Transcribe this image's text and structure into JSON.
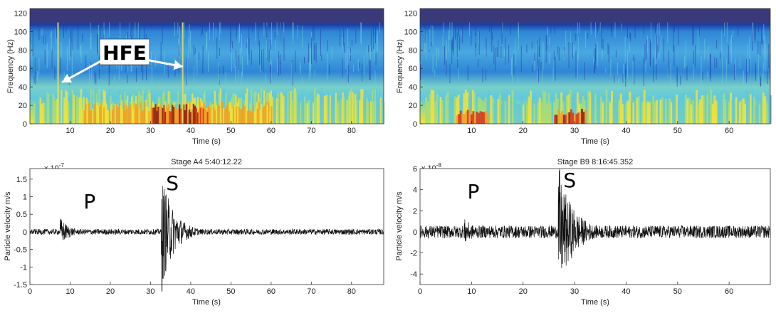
{
  "chart_data": [
    {
      "type": "heatmap",
      "panel": "spectrogram-a4",
      "xlabel": "Time (s)",
      "ylabel": "Frequency (Hz)",
      "xlim": [
        0,
        88
      ],
      "ylim": [
        0,
        125
      ],
      "xticks": [
        10,
        20,
        30,
        40,
        50,
        60,
        70,
        80
      ],
      "yticks": [
        0,
        20,
        40,
        60,
        80,
        100,
        120
      ],
      "colormap": [
        "#0a1a5e",
        "#1b3fa6",
        "#2f86d6",
        "#5fc8df",
        "#a6dc7a",
        "#f2e13a",
        "#f5a020",
        "#d9331c",
        "#8a1c14"
      ],
      "high_freq_events": [
        7,
        38
      ],
      "annotation": {
        "text": "HFE",
        "points_to": [
          [
            8,
            45
          ],
          [
            38,
            62
          ]
        ]
      }
    },
    {
      "type": "heatmap",
      "panel": "spectrogram-b9",
      "xlabel": "Time (s)",
      "ylabel": "Frequency (Hz)",
      "xlim": [
        0,
        68
      ],
      "ylim": [
        0,
        125
      ],
      "xticks": [
        10,
        20,
        30,
        40,
        50,
        60
      ],
      "yticks": [
        0,
        20,
        40,
        60,
        80,
        100,
        120
      ],
      "colormap": [
        "#0a1a5e",
        "#1b3fa6",
        "#2f86d6",
        "#5fc8df",
        "#a6dc7a",
        "#f2e13a",
        "#f5a020",
        "#d9331c",
        "#8a1c14"
      ]
    },
    {
      "type": "line",
      "panel": "waveform-a4",
      "title": "Stage A4 5:40:12.22",
      "xlabel": "Time (s)",
      "ylabel": "Particle velocity m/s",
      "multiplier": "x 10",
      "exponent": "-7",
      "xlim": [
        0,
        88
      ],
      "ylim": [
        -1.5,
        1.8
      ],
      "xticks": [
        0,
        10,
        20,
        30,
        40,
        50,
        60,
        70,
        80
      ],
      "yticks": [
        "-1.5",
        "-1",
        "-0.5",
        "0",
        "0.5",
        "1",
        "1.5"
      ],
      "noise_amplitude": 0.08,
      "events": [
        {
          "label": "P",
          "time": 7.5,
          "peak": 0.7
        },
        {
          "label": "S",
          "time": 32.8,
          "peak": 1.8
        }
      ]
    },
    {
      "type": "line",
      "panel": "waveform-b9",
      "title": "Stage B9 8:16:45.352",
      "xlabel": "Time (s)",
      "ylabel": "Particle velocity m/s",
      "multiplier": "x 10",
      "exponent": "-8",
      "xlim": [
        0,
        68
      ],
      "ylim": [
        -5,
        6
      ],
      "xticks": [
        0,
        10,
        20,
        30,
        40,
        50,
        60
      ],
      "yticks": [
        "-4",
        "-2",
        "0",
        "2",
        "4",
        "6"
      ],
      "noise_amplitude": 0.6,
      "events": [
        {
          "label": "P",
          "time": 8.5,
          "peak": 2.2
        },
        {
          "label": "S",
          "time": 27,
          "peak": 6
        }
      ]
    }
  ]
}
